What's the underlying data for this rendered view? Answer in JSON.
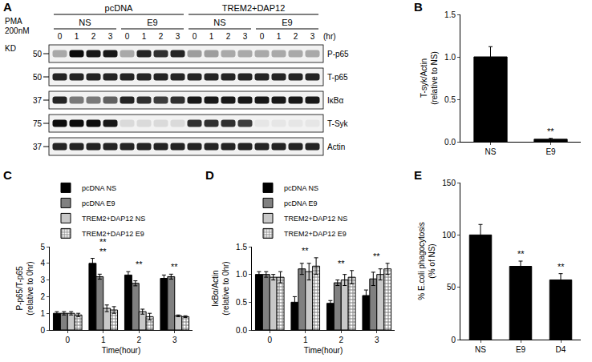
{
  "blot": {
    "label": "A",
    "header": {
      "treatment": "PMA",
      "dose": "200nM",
      "mw_label": "KD"
    },
    "groups": [
      {
        "label": "pcDNA",
        "subgroups": [
          "NS",
          "E9"
        ]
      },
      {
        "label": "TREM2+DAP12",
        "subgroups": [
          "NS",
          "E9"
        ]
      }
    ],
    "times": [
      "0",
      "1",
      "2",
      "3"
    ],
    "time_unit": "(hr)",
    "rows": [
      {
        "label": "P-p65",
        "mw": 50,
        "intensity": [
          0.3,
          0.95,
          0.9,
          0.9,
          0.3,
          0.85,
          0.8,
          0.85,
          0.35,
          0.35,
          0.3,
          0.3,
          0.3,
          0.3,
          0.3,
          0.3
        ]
      },
      {
        "label": "T-p65",
        "mw": 50,
        "intensity": [
          0.85,
          0.85,
          0.85,
          0.85,
          0.85,
          0.85,
          0.85,
          0.85,
          0.85,
          0.85,
          0.85,
          0.85,
          0.85,
          0.85,
          0.85,
          0.85
        ]
      },
      {
        "label": "IκBα",
        "mw": 37,
        "intensity": [
          0.85,
          0.5,
          0.5,
          0.6,
          0.85,
          0.8,
          0.75,
          0.8,
          0.9,
          0.9,
          0.9,
          0.9,
          0.9,
          0.9,
          0.9,
          0.9
        ]
      },
      {
        "label": "T-Syk",
        "mw": 75,
        "intensity": [
          0.95,
          0.95,
          0.95,
          0.9,
          0.1,
          0.1,
          0.1,
          0.1,
          0.8,
          0.8,
          0.8,
          0.75,
          0.05,
          0.05,
          0.05,
          0.05
        ]
      },
      {
        "label": "Actin",
        "mw": 37,
        "intensity": [
          0.85,
          0.85,
          0.85,
          0.85,
          0.85,
          0.85,
          0.85,
          0.85,
          0.85,
          0.85,
          0.85,
          0.85,
          0.85,
          0.85,
          0.85,
          0.85
        ]
      }
    ]
  },
  "chart_data": [
    {
      "label": "B",
      "type": "bar",
      "categories": [
        "NS",
        "E9"
      ],
      "values": [
        1.0,
        0.03
      ],
      "errors": [
        0.12,
        0.01
      ],
      "color": "#000000",
      "y_label": "T-syk/Actin\n(relative to NS)",
      "ylim": [
        0,
        1.5
      ],
      "yticks": [
        {
          "value": 0,
          "label": "0.0"
        },
        {
          "value": 0.5,
          "label": "0.5"
        },
        {
          "value": 1,
          "label": "1.0"
        },
        {
          "value": 1.5,
          "label": "1.5"
        }
      ],
      "grid": false,
      "annotations": [
        {
          "category": "E9",
          "text": "**"
        }
      ]
    },
    {
      "label": "C",
      "type": "bar",
      "categories": [
        "0",
        "1",
        "2",
        "3"
      ],
      "x_label": "Time(hour)",
      "y_label": "P-p65/T-p65\n(relative to 0hr)",
      "series": [
        {
          "name": "pcDNA NS",
          "color": "#000000",
          "values": [
            1.0,
            4.0,
            3.3,
            3.1
          ],
          "errors": [
            0.1,
            0.3,
            0.2,
            0.2
          ]
        },
        {
          "name": "pcDNA E9",
          "color": "#808080",
          "values": [
            1.0,
            3.2,
            2.8,
            3.2
          ],
          "errors": [
            0.1,
            0.15,
            0.15,
            0.15
          ]
        },
        {
          "name": "TREM2+DAP12 NS",
          "color": "#c8c8c8",
          "values": [
            1.0,
            1.3,
            1.1,
            0.85
          ],
          "errors": [
            0.1,
            0.2,
            0.15,
            0.05
          ]
        },
        {
          "name": "TREM2+DAP12 E9",
          "color": "#000000",
          "marker": "checkered",
          "values": [
            0.9,
            1.2,
            0.8,
            0.8
          ],
          "errors": [
            0.1,
            0.2,
            0.2,
            0.05
          ]
        }
      ],
      "ylim": [
        0,
        5
      ],
      "yticks": [
        0,
        1,
        2,
        3,
        4,
        5
      ],
      "grid": false,
      "legend": "top-left",
      "annotations": [
        {
          "category": "1",
          "text": "**"
        },
        {
          "category": "1",
          "text": "**"
        },
        {
          "category": "2",
          "text": "**"
        },
        {
          "category": "3",
          "text": "**"
        }
      ]
    },
    {
      "label": "D",
      "type": "bar",
      "categories": [
        "0",
        "1",
        "2",
        "3"
      ],
      "x_label": "Time(hour)",
      "y_label": "IκBα/Actin\n(relative to 0hr)",
      "series": [
        {
          "name": "pcDNA NS",
          "color": "#000000",
          "values": [
            1.0,
            0.5,
            0.48,
            0.62
          ],
          "errors": [
            0.05,
            0.1,
            0.05,
            0.1
          ]
        },
        {
          "name": "pcDNA E9",
          "color": "#808080",
          "values": [
            1.0,
            1.1,
            0.85,
            0.92
          ],
          "errors": [
            0.05,
            0.1,
            0.05,
            0.12
          ]
        },
        {
          "name": "TREM2+DAP12 NS",
          "color": "#c8c8c8",
          "values": [
            0.95,
            1.05,
            0.9,
            1.0
          ],
          "errors": [
            0.05,
            0.15,
            0.1,
            0.1
          ]
        },
        {
          "name": "TREM2+DAP12 E9",
          "color": "#000000",
          "marker": "checkered",
          "values": [
            0.95,
            1.15,
            0.95,
            1.1
          ],
          "errors": [
            0.1,
            0.15,
            0.12,
            0.1
          ]
        }
      ],
      "ylim": [
        0,
        1.5
      ],
      "yticks": [
        {
          "value": 0,
          "label": "0.0"
        },
        {
          "value": 0.5,
          "label": "0.5"
        },
        {
          "value": 1,
          "label": "1.0"
        },
        {
          "value": 1.5,
          "label": "1.5"
        }
      ],
      "grid": false,
      "legend": "top-left",
      "annotations": [
        {
          "category": "1",
          "text": "**"
        },
        {
          "category": "2",
          "text": "**"
        },
        {
          "category": "3",
          "text": "**"
        }
      ]
    },
    {
      "label": "E",
      "type": "bar",
      "categories": [
        "NS",
        "E9",
        "D4"
      ],
      "values": [
        100,
        70,
        57
      ],
      "errors": [
        10,
        5,
        6
      ],
      "color": "#000000",
      "y_label": "% E.coli phagocytosis\n(% of NS)",
      "ylim": [
        0,
        150
      ],
      "yticks": [
        0,
        50,
        100,
        150
      ],
      "grid": false,
      "annotations": [
        {
          "category": "E9",
          "text": "**"
        },
        {
          "category": "D4",
          "text": "**"
        }
      ]
    }
  ]
}
